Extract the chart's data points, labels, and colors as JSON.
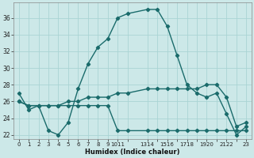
{
  "xlabel": "Humidex (Indice chaleur)",
  "bg_color": "#cce8e8",
  "grid_color": "#aad4d4",
  "line_color": "#1a6b6b",
  "x": [
    0,
    1,
    2,
    3,
    4,
    5,
    6,
    7,
    8,
    9,
    10,
    11,
    13,
    14,
    15,
    16,
    17,
    18,
    19,
    20,
    21,
    22,
    23
  ],
  "y_main": [
    27,
    25,
    25.5,
    22.5,
    22,
    23.5,
    27.5,
    30.5,
    32.5,
    33.5,
    36,
    36.5,
    37,
    37,
    35,
    31.5,
    28,
    27,
    26.5,
    27,
    24.5,
    22,
    23
  ],
  "y_upper": [
    26,
    25.5,
    25.5,
    25.5,
    25.5,
    26,
    26,
    26.5,
    26.5,
    26.5,
    27,
    27,
    27.5,
    27.5,
    27.5,
    27.5,
    27.5,
    27.5,
    28,
    28,
    26.5,
    23,
    23.5
  ],
  "y_lower": [
    26,
    25.5,
    25.5,
    25.5,
    25.5,
    25.5,
    25.5,
    25.5,
    25.5,
    25.5,
    22.5,
    22.5,
    22.5,
    22.5,
    22.5,
    22.5,
    22.5,
    22.5,
    22.5,
    22.5,
    22.5,
    22.5,
    22.5
  ],
  "xlim": [
    -0.5,
    23.5
  ],
  "ylim": [
    21.5,
    37.8
  ],
  "yticks": [
    22,
    24,
    26,
    28,
    30,
    32,
    34,
    36
  ],
  "xtick_positions": [
    0,
    1,
    2,
    3,
    4,
    5,
    6,
    7,
    8,
    9,
    10,
    11,
    13,
    14,
    15,
    16,
    17,
    18,
    19,
    20,
    21,
    22,
    23
  ],
  "xtick_labels": [
    "0",
    "1",
    "2",
    "3",
    "4",
    "5",
    "6",
    "7",
    "8",
    "9",
    "1011",
    "",
    "1314",
    "",
    "1516",
    "",
    "1718",
    "",
    "1920",
    "",
    "2122",
    "",
    "23"
  ],
  "marker": "D",
  "markersize": 2.2,
  "linewidth": 1.0
}
